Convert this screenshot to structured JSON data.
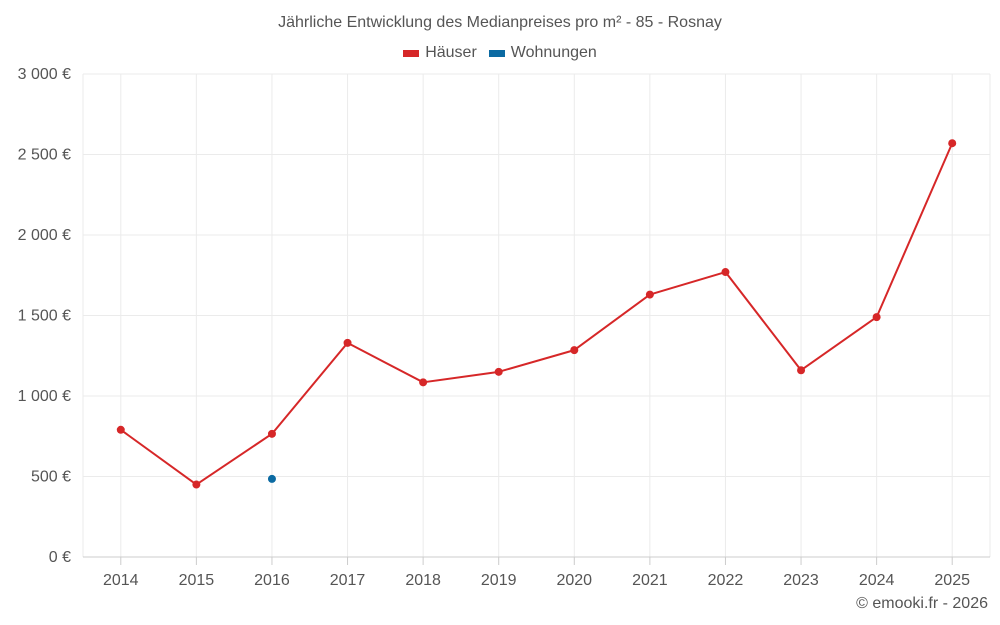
{
  "chart_data": {
    "type": "line",
    "title": "Jährliche Entwicklung des Medianpreises pro m² - 85 - Rosnay",
    "xlabel": "",
    "ylabel": "",
    "categories": [
      "2014",
      "2015",
      "2016",
      "2017",
      "2018",
      "2019",
      "2020",
      "2021",
      "2022",
      "2023",
      "2024",
      "2025"
    ],
    "y_ticks": [
      0,
      500,
      1000,
      1500,
      2000,
      2500,
      3000
    ],
    "y_tick_labels": [
      "0 €",
      "500 €",
      "1 000 €",
      "1 500 €",
      "2 000 €",
      "2 500 €",
      "3 000 €"
    ],
    "ylim": [
      0,
      3000
    ],
    "grid": true,
    "legend_position": "top-center",
    "series": [
      {
        "name": "Häuser",
        "color": "#d62728",
        "values": [
          790,
          450,
          765,
          1330,
          1085,
          1150,
          1285,
          1630,
          1770,
          1160,
          1490,
          2570
        ]
      },
      {
        "name": "Wohnungen",
        "color": "#0b6aa2",
        "values": [
          null,
          null,
          485,
          null,
          null,
          null,
          null,
          null,
          null,
          null,
          null,
          null
        ]
      }
    ]
  },
  "credit": "© emooki.fr - 2026",
  "colors": {
    "grid": "#ebebeb",
    "axis": "#cccccc",
    "text": "#555555"
  }
}
